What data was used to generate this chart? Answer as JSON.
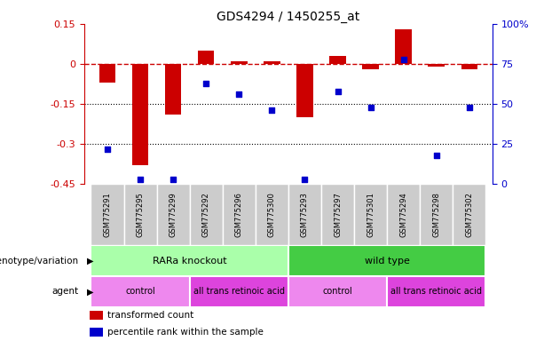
{
  "title": "GDS4294 / 1450255_at",
  "samples": [
    "GSM775291",
    "GSM775295",
    "GSM775299",
    "GSM775292",
    "GSM775296",
    "GSM775300",
    "GSM775293",
    "GSM775297",
    "GSM775301",
    "GSM775294",
    "GSM775298",
    "GSM775302"
  ],
  "bar_values": [
    -0.07,
    -0.38,
    -0.19,
    0.05,
    0.01,
    0.01,
    -0.2,
    0.03,
    -0.02,
    0.13,
    -0.01,
    -0.02
  ],
  "percentile_values": [
    22,
    3,
    3,
    63,
    56,
    46,
    3,
    58,
    48,
    78,
    18,
    48
  ],
  "ylim_left": [
    -0.45,
    0.15
  ],
  "ylim_right": [
    0,
    100
  ],
  "yticks_left": [
    0.15,
    0.0,
    -0.15,
    -0.3,
    -0.45
  ],
  "yticks_left_labels": [
    "0.15",
    "0",
    "-0.15",
    "-0.3",
    "-0.45"
  ],
  "yticks_right": [
    100,
    75,
    50,
    25,
    0
  ],
  "yticks_right_labels": [
    "100%",
    "75",
    "50",
    "25",
    "0"
  ],
  "bar_color": "#cc0000",
  "dot_color": "#0000cc",
  "hline_color": "#cc0000",
  "grid_color": "#000000",
  "bg_color": "#ffffff",
  "sample_box_color": "#cccccc",
  "genotype_groups": [
    {
      "label": "RARa knockout",
      "start": 0,
      "end": 6,
      "color": "#aaffaa"
    },
    {
      "label": "wild type",
      "start": 6,
      "end": 12,
      "color": "#44cc44"
    }
  ],
  "agent_groups": [
    {
      "label": "control",
      "start": 0,
      "end": 3,
      "color": "#ee88ee"
    },
    {
      "label": "all trans retinoic acid",
      "start": 3,
      "end": 6,
      "color": "#dd44dd"
    },
    {
      "label": "control",
      "start": 6,
      "end": 9,
      "color": "#ee88ee"
    },
    {
      "label": "all trans retinoic acid",
      "start": 9,
      "end": 12,
      "color": "#dd44dd"
    }
  ],
  "legend_bar_label": "transformed count",
  "legend_dot_label": "percentile rank within the sample",
  "genotype_label": "genotype/variation",
  "agent_label": "agent",
  "bar_width": 0.5,
  "dot_size": 25
}
